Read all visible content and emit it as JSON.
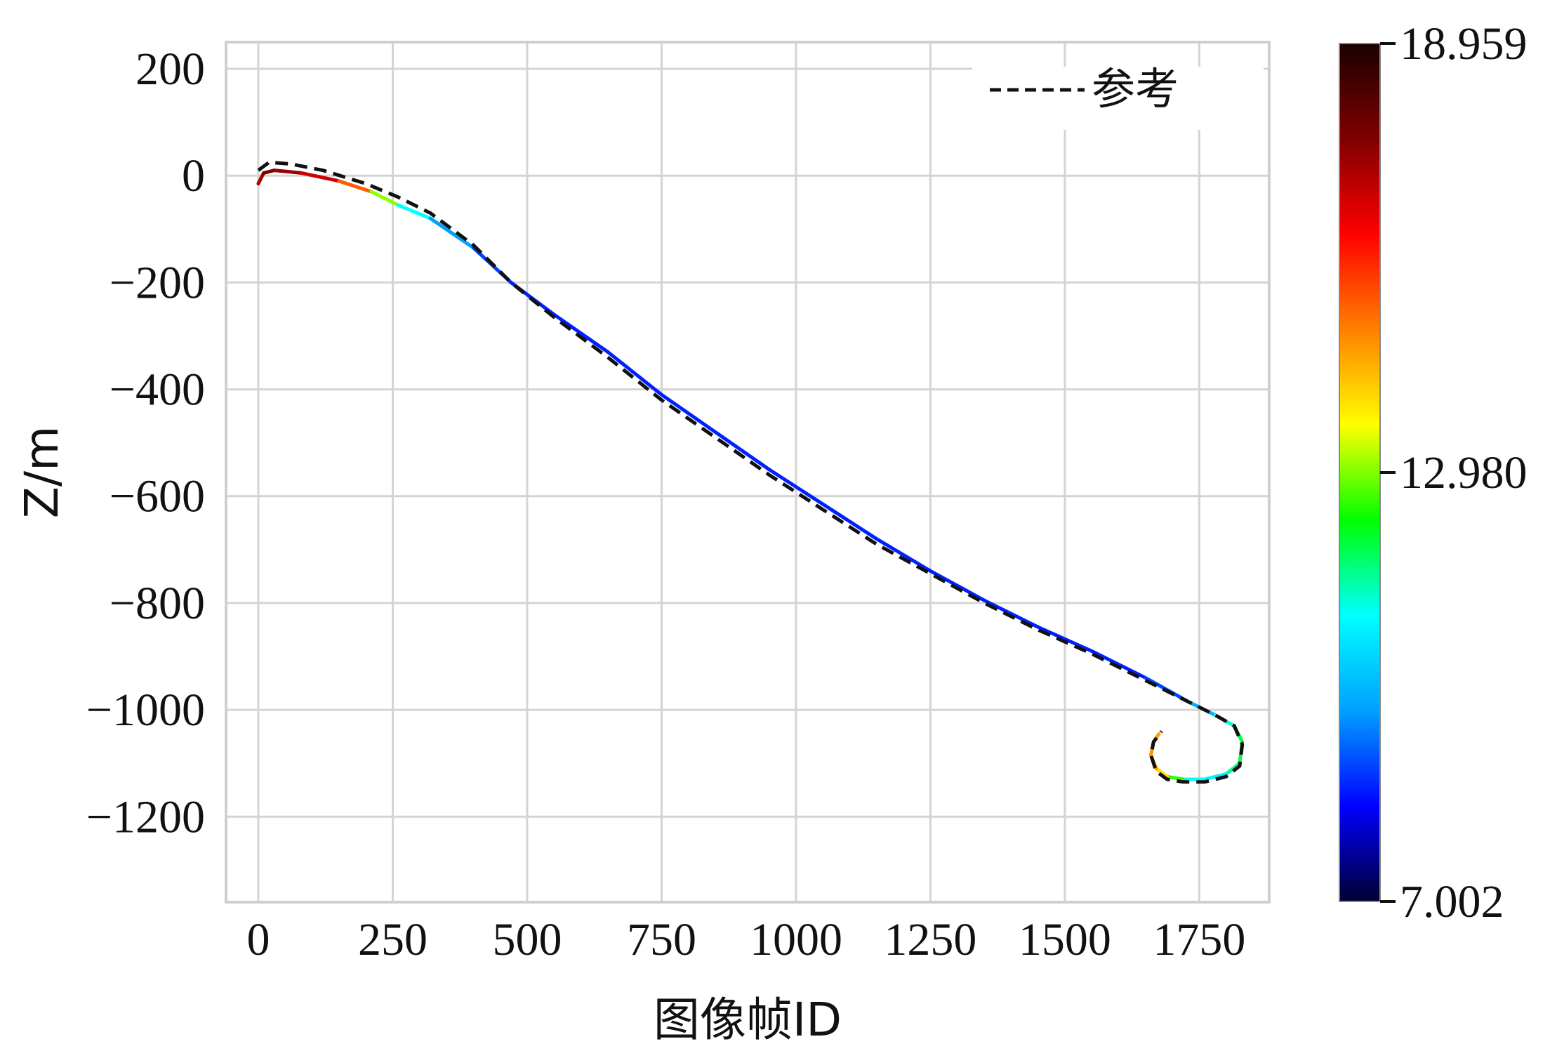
{
  "chart_data": {
    "type": "line",
    "title": "",
    "xlabel": "图像帧ID",
    "ylabel": "Z/m",
    "xlim": [
      -60,
      1880
    ],
    "ylim": [
      -1360,
      250
    ],
    "grid": true,
    "xticks": [
      0,
      250,
      500,
      750,
      1000,
      1250,
      1500,
      1750
    ],
    "xtick_labels": [
      "0",
      "250",
      "500",
      "750",
      "1000",
      "1250",
      "1500",
      "1750"
    ],
    "yticks": [
      200,
      0,
      -200,
      -400,
      -600,
      -800,
      -1000,
      -1200
    ],
    "ytick_labels": [
      "200",
      "0",
      "−200",
      "−400",
      "−600",
      "−800",
      "−1000",
      "−1200"
    ],
    "legend": {
      "label": "参考",
      "placement": "top-right",
      "style": "dashed",
      "color": "#111111"
    },
    "colorbar": {
      "min_label": "7.002",
      "mid_label": "12.980",
      "max_label": "18.959",
      "min": 7.002,
      "mid": 12.98,
      "max": 18.959,
      "colormap": "jet",
      "stops": [
        "#000033",
        "#0000ff",
        "#00a0ff",
        "#00ffff",
        "#00ff00",
        "#ffff00",
        "#ff8000",
        "#ff0000",
        "#800000",
        "#1a0000"
      ]
    },
    "series": [
      {
        "name": "参考",
        "style": "dashed",
        "x": [
          0,
          20,
          60,
          120,
          200,
          260,
          320,
          400,
          470,
          550,
          650,
          750,
          850,
          950,
          1050,
          1150,
          1250,
          1350,
          1450,
          1550,
          1650,
          1730,
          1780,
          1815,
          1830,
          1825,
          1800,
          1760,
          1720,
          1690,
          1670,
          1660,
          1665,
          1680
        ],
        "y": [
          10,
          25,
          22,
          10,
          -15,
          -40,
          -70,
          -130,
          -200,
          -265,
          -340,
          -420,
          -490,
          -560,
          -625,
          -690,
          -745,
          -800,
          -850,
          -895,
          -945,
          -985,
          -1010,
          -1030,
          -1065,
          -1105,
          -1125,
          -1135,
          -1135,
          -1130,
          -1115,
          -1085,
          -1060,
          -1040
        ]
      },
      {
        "name": "",
        "style": "solid",
        "colored_by": "colorbar",
        "x": [
          0,
          10,
          30,
          80,
          150,
          210,
          260,
          320,
          400,
          470,
          550,
          650,
          750,
          850,
          950,
          1050,
          1150,
          1250,
          1350,
          1450,
          1550,
          1650,
          1730,
          1780,
          1815,
          1830,
          1825,
          1800,
          1760,
          1720,
          1690,
          1670,
          1660,
          1665,
          1675
        ],
        "y": [
          -15,
          5,
          10,
          5,
          -10,
          -30,
          -55,
          -80,
          -135,
          -200,
          -260,
          -330,
          -410,
          -480,
          -550,
          -615,
          -680,
          -740,
          -795,
          -845,
          -890,
          -940,
          -985,
          -1010,
          -1030,
          -1060,
          -1100,
          -1120,
          -1130,
          -1130,
          -1125,
          -1110,
          -1085,
          -1060,
          -1045
        ],
        "c": [
          16.5,
          17.8,
          17.6,
          17.2,
          16.4,
          14.3,
          11.8,
          10.2,
          9.1,
          8.6,
          8.6,
          8.6,
          8.6,
          8.6,
          8.6,
          8.6,
          8.6,
          8.6,
          8.6,
          8.6,
          8.6,
          8.6,
          9.2,
          10.6,
          11.8,
          12.1,
          11.9,
          11.2,
          10.4,
          11.6,
          13.5,
          14.6,
          14.8,
          14.7,
          14.5
        ]
      }
    ]
  }
}
